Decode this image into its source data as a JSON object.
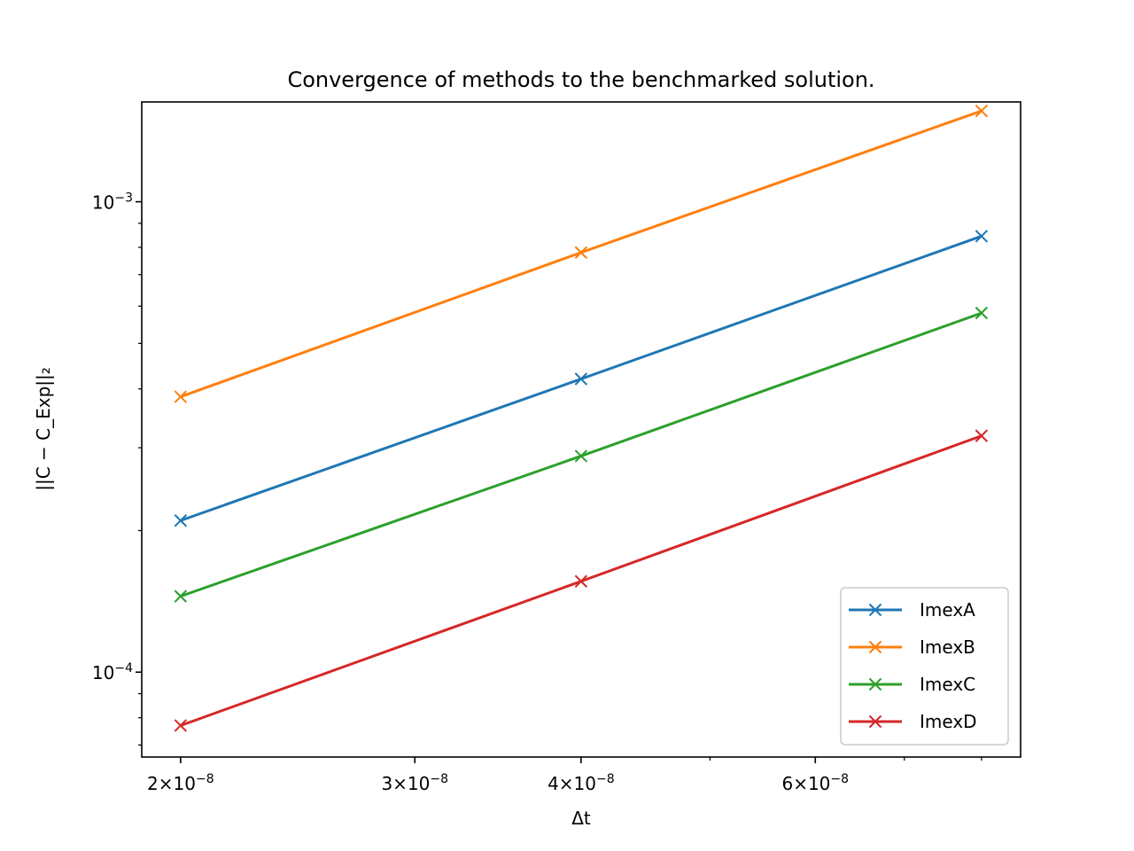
{
  "chart_data": {
    "type": "line",
    "title": "Convergence of methods to the benchmarked solution.",
    "xlabel": "Δt",
    "ylabel": "||C − C_Exp||₂",
    "xscale": "log",
    "yscale": "log",
    "xlim": [
      1.87e-08,
      8.56e-08
    ],
    "ylim": [
      6.6e-05,
      0.00163
    ],
    "x": [
      2e-08,
      4e-08,
      8e-08
    ],
    "x_major_ticks": [
      {
        "mantissa": "2",
        "exp": "−8",
        "value": 2e-08
      },
      {
        "mantissa": "3",
        "exp": "−8",
        "value": 3e-08
      },
      {
        "mantissa": "4",
        "exp": "−8",
        "value": 4e-08
      },
      {
        "mantissa": "6",
        "exp": "−8",
        "value": 6e-08
      }
    ],
    "x_minor_ticks": [
      5e-08,
      7e-08,
      8e-08
    ],
    "y_major_ticks": [
      {
        "base": "10",
        "exp": "−3",
        "value": 0.001
      },
      {
        "base": "10",
        "exp": "−4",
        "value": 0.0001
      }
    ],
    "y_minor_ticks": [
      7e-05,
      8e-05,
      9e-05,
      0.0002,
      0.0003,
      0.0004,
      0.0005,
      0.0006,
      0.0007,
      0.0008,
      0.0009
    ],
    "grid": false,
    "legend_position": "lower-right",
    "marker": "x",
    "series": [
      {
        "name": "ImexA",
        "color": "#1f77b4",
        "values": [
          0.00021,
          0.00042,
          0.000845
        ]
      },
      {
        "name": "ImexB",
        "color": "#ff7f0e",
        "values": [
          0.000385,
          0.00078,
          0.00156
        ]
      },
      {
        "name": "ImexC",
        "color": "#2ca02c",
        "values": [
          0.000145,
          0.000288,
          0.00058
        ]
      },
      {
        "name": "ImexD",
        "color": "#d62728",
        "values": [
          7.7e-05,
          0.000156,
          0.000318
        ]
      }
    ]
  }
}
